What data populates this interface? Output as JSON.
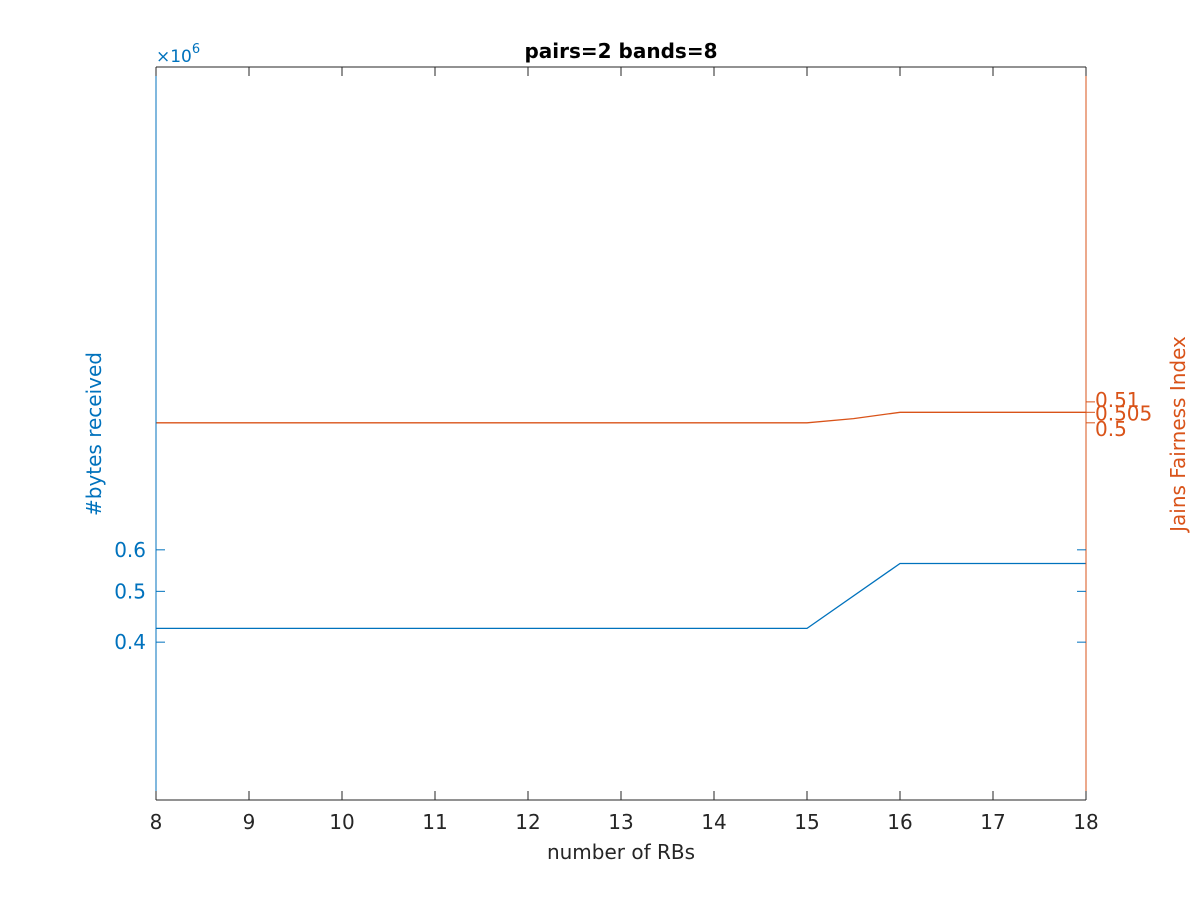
{
  "chart_data": {
    "type": "line",
    "title": "pairs=2 bands=8",
    "xlabel": "number of RBs",
    "xlim": [
      8,
      18
    ],
    "xticks": [
      "8",
      "9",
      "10",
      "11",
      "12",
      "13",
      "14",
      "15",
      "16",
      "17",
      "18"
    ],
    "left_axis": {
      "label": "#bytes received",
      "exponent_label": "×10",
      "exponent_power": "6",
      "scale": "log",
      "ylim": [
        0.2,
        5
      ],
      "ticks": [
        "0.4",
        "0.5",
        "0.6"
      ],
      "tick_values": [
        0.4,
        0.5,
        0.6
      ],
      "color": "#0072BD"
    },
    "right_axis": {
      "label": "Jains Fairness Index",
      "scale": "log",
      "ylim": [
        0.35,
        0.7
      ],
      "ticks": [
        "0.5",
        "0.505",
        "0.51"
      ],
      "tick_values": [
        0.5,
        0.505,
        0.51
      ],
      "color": "#D95319"
    },
    "series": [
      {
        "axis": "left",
        "color": "#0072BD",
        "x": [
          8,
          9,
          10,
          11,
          12,
          13,
          14,
          15,
          16,
          17,
          18
        ],
        "y": [
          0.425,
          0.425,
          0.425,
          0.425,
          0.425,
          0.425,
          0.425,
          0.425,
          0.565,
          0.565,
          0.565
        ]
      },
      {
        "axis": "right",
        "color": "#D95319",
        "x": [
          8,
          9,
          10,
          11,
          12,
          13,
          14,
          15,
          15.5,
          16,
          17,
          18
        ],
        "y": [
          0.5,
          0.5,
          0.5,
          0.5,
          0.5,
          0.5,
          0.5,
          0.5,
          0.502,
          0.505,
          0.505,
          0.505
        ]
      }
    ]
  }
}
